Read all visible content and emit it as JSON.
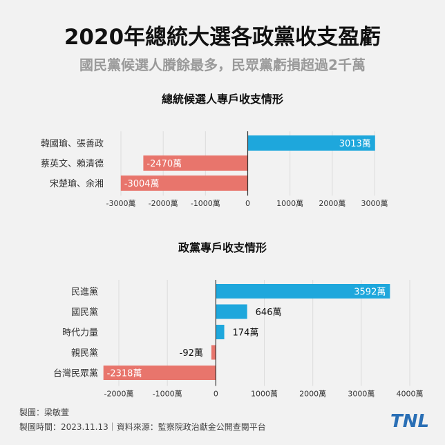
{
  "title": "2020年總統大選各政黨收支盈虧",
  "subtitle": "國民黨候選人賸餘最多，民眾黨虧損超過2千萬",
  "colors": {
    "positive": "#1ea7dc",
    "negative": "#e8756c",
    "grid": "#dcdcdc",
    "axis": "#333333"
  },
  "chart_data": [
    {
      "type": "bar",
      "orientation": "horizontal",
      "title": "總統候選人專戶收支情形",
      "categories": [
        "韓國瑜、張善政",
        "蔡英文、賴清德",
        "宋楚瑜、余湘"
      ],
      "values": [
        3013,
        -2470,
        -3004
      ],
      "data_labels": [
        "3013萬",
        "-2470萬",
        "-3004萬"
      ],
      "xlim": [
        -3000,
        3000
      ],
      "xticks": [
        -3000,
        -2000,
        -1000,
        0,
        1000,
        2000,
        3000
      ],
      "xtick_labels": [
        "-3000萬",
        "-2000萬",
        "-1000萬",
        "0",
        "1000萬",
        "2000萬",
        "3000萬"
      ],
      "grid": true
    },
    {
      "type": "bar",
      "orientation": "horizontal",
      "title": "政黨專戶收支情形",
      "categories": [
        "民進黨",
        "國民黨",
        "時代力量",
        "親民黨",
        "台灣民眾黨"
      ],
      "values": [
        3592,
        646,
        174,
        -92,
        -2318
      ],
      "data_labels": [
        "3592萬",
        "646萬",
        "174萬",
        "-92萬",
        "-2318萬"
      ],
      "xlim": [
        -2000,
        4000
      ],
      "xticks": [
        -2000,
        -1000,
        0,
        1000,
        2000,
        3000,
        4000
      ],
      "xtick_labels": [
        "-2000萬",
        "-1000萬",
        "0",
        "1000萬",
        "2000萬",
        "3000萬",
        "4000萬"
      ],
      "grid": true
    }
  ],
  "footer": {
    "credit": "製圖：梁敏萱",
    "source": "製圖時間：2023.11.13｜資料來源：監察院政治獻金公開查閱平台"
  },
  "logo": {
    "text": "TNL"
  }
}
